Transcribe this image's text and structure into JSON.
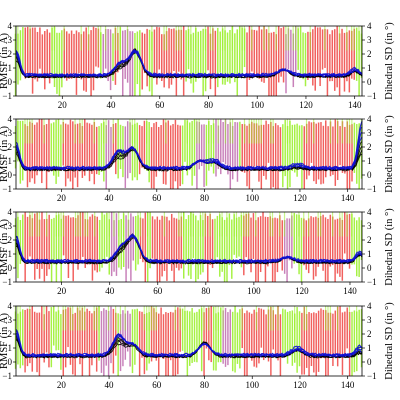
{
  "colors": {
    "helix": "#ef4a48",
    "coil": "#9aef2a",
    "sheet": "#c070b0",
    "black_series": "#000000",
    "blue_series": "#1010d0"
  },
  "chart_data": [
    {
      "type": "line",
      "ylabel_left": "RMSF (in Å)",
      "ylabel_right": "Dihedral SD (in °)",
      "xlim": [
        1,
        143
      ],
      "ylim": [
        -1,
        4
      ],
      "y_ticks": [
        "−1",
        "0",
        "1",
        "2",
        "3",
        "4"
      ],
      "x_ticks": [
        "20",
        "40",
        "60",
        "80",
        "100",
        "120",
        "140"
      ],
      "peaks": [
        [
          44,
          1.3
        ],
        [
          50,
          2.6
        ],
        [
          111,
          1.2
        ],
        [
          140,
          1.3
        ]
      ],
      "coil_ranges": [
        [
          1,
          4
        ],
        [
          16,
          20
        ],
        [
          36,
          41
        ],
        [
          44,
          52
        ],
        [
          56,
          57
        ],
        [
          71,
          79
        ],
        [
          84,
          95
        ],
        [
          113,
          120
        ],
        [
          141,
          143
        ]
      ],
      "sheet_ranges": [
        [
          37,
          40
        ],
        [
          45,
          49
        ],
        [
          112,
          116
        ]
      ]
    },
    {
      "type": "line",
      "ylabel_left": "RMSF (in Å)",
      "ylabel_right": "Dihedral SD (in °)",
      "xlim": [
        1,
        146
      ],
      "ylim": [
        -1,
        4
      ],
      "y_ticks": [
        "−1",
        "0",
        "1",
        "2",
        "3",
        "4"
      ],
      "x_ticks": [
        "20",
        "40",
        "60",
        "80",
        "100",
        "120",
        "140"
      ],
      "peaks": [
        [
          44,
          1.6
        ],
        [
          50,
          2.2
        ],
        [
          78,
          1.4
        ],
        [
          84,
          1.6
        ],
        [
          119,
          0.8
        ],
        [
          146,
          3.4
        ]
      ],
      "coil_ranges": [
        [
          1,
          4
        ],
        [
          16,
          20
        ],
        [
          36,
          41
        ],
        [
          44,
          52
        ],
        [
          56,
          57
        ],
        [
          71,
          79
        ],
        [
          81,
          95
        ],
        [
          113,
          121
        ],
        [
          143,
          146
        ]
      ],
      "sheet_ranges": [
        [
          39,
          41
        ],
        [
          47,
          49
        ],
        [
          77,
          80
        ],
        [
          85,
          94
        ]
      ]
    },
    {
      "type": "line",
      "ylabel_left": "RMSF (in Å)",
      "ylabel_right": "Dihedral SD (in °)",
      "xlim": [
        1,
        145
      ],
      "ylim": [
        -1,
        4
      ],
      "y_ticks": [
        "−1",
        "0",
        "1",
        "2",
        "3",
        "4"
      ],
      "x_ticks": [
        "20",
        "40",
        "60",
        "80",
        "100",
        "120",
        "140"
      ],
      "peaks": [
        [
          45,
          1.4
        ],
        [
          50,
          2.6
        ],
        [
          114,
          1.0
        ],
        [
          144,
          1.7
        ]
      ],
      "coil_ranges": [
        [
          1,
          4
        ],
        [
          16,
          20
        ],
        [
          36,
          41
        ],
        [
          44,
          52
        ],
        [
          56,
          57
        ],
        [
          71,
          79
        ],
        [
          84,
          95
        ],
        [
          113,
          120
        ],
        [
          141,
          145
        ]
      ],
      "sheet_ranges": [
        [
          41,
          43
        ],
        [
          47,
          50
        ],
        [
          113,
          116
        ]
      ]
    },
    {
      "type": "line",
      "ylabel_left": "RMSF (in Å)",
      "ylabel_right": "Dihedral SD (in °)",
      "xlim": [
        1,
        146
      ],
      "ylim": [
        -1,
        4
      ],
      "y_ticks": [
        "−1",
        "0",
        "1",
        "2",
        "3",
        "4"
      ],
      "x_ticks": [
        "20",
        "40",
        "60",
        "80",
        "100",
        "120",
        "140"
      ],
      "peaks": [
        [
          44,
          1.8
        ],
        [
          50,
          1.4
        ],
        [
          80,
          2.0
        ],
        [
          119,
          1.5
        ],
        [
          145,
          1.2
        ]
      ],
      "coil_ranges": [
        [
          1,
          4
        ],
        [
          16,
          20
        ],
        [
          36,
          41
        ],
        [
          44,
          52
        ],
        [
          56,
          57
        ],
        [
          71,
          79
        ],
        [
          84,
          95
        ],
        [
          113,
          120
        ],
        [
          142,
          146
        ]
      ],
      "sheet_ranges": [
        [
          37,
          41
        ],
        [
          45,
          49
        ],
        [
          88,
          91
        ]
      ]
    }
  ]
}
